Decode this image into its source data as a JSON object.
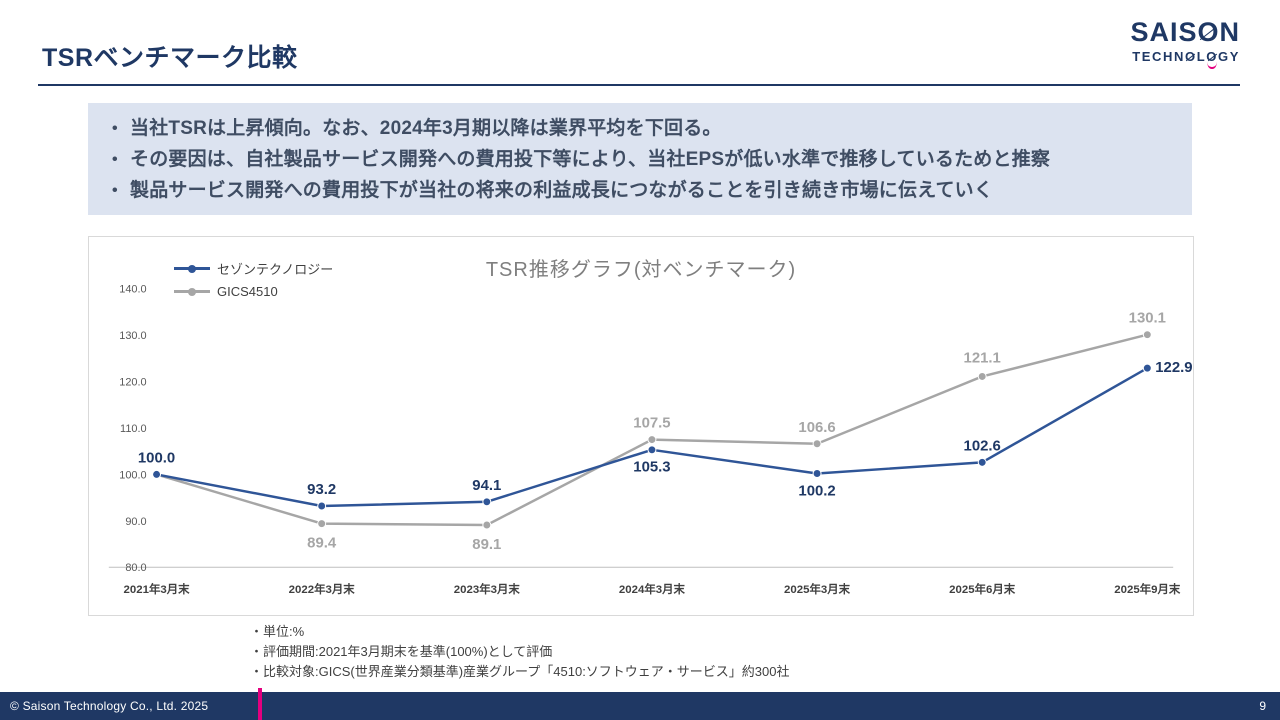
{
  "slide": {
    "title": "TSRベンチマーク比較",
    "page_number": "9",
    "copyright": "© Saison Technology Co., Ltd. 2025"
  },
  "logo": {
    "line1": "SAISON",
    "line2": "TECHNOLOGY",
    "color": "#1F3864",
    "accent_color": "#E4007F"
  },
  "summary": {
    "bullet_char": "•",
    "bullets": [
      "当社TSRは上昇傾向。なお、2024年3月期以降は業界平均を下回る。",
      "その要因は、自社製品サービス開発への費用投下等により、当社EPSが低い水準で推移しているためと推察",
      "製品サービス開発への費用投下が当社の将来の利益成長につながることを引き続き市場に伝えていく"
    ]
  },
  "chart_data": {
    "type": "line",
    "title": "TSR推移グラフ(対ベンチマーク)",
    "categories": [
      "2021年3月末",
      "2022年3月末",
      "2023年3月末",
      "2024年3月末",
      "2025年3月末",
      "2025年6月末",
      "2025年9月末"
    ],
    "series": [
      {
        "name": "セゾンテクノロジー",
        "color": "#2F5597",
        "label_color": "#1F3864",
        "values": [
          100.0,
          93.2,
          94.1,
          105.3,
          100.2,
          102.6,
          122.9
        ]
      },
      {
        "name": "GICS4510",
        "color": "#A6A6A6",
        "label_color": "#A6A6A6",
        "values": [
          100.0,
          89.4,
          89.1,
          107.5,
          106.6,
          121.1,
          130.1
        ]
      }
    ],
    "ylim": [
      80,
      140
    ],
    "ytick_step": 10,
    "grid": false,
    "data_labels": true,
    "legend_position": "top-left"
  },
  "notes": [
    "・単位:%",
    "・評価期間:2021年3月期末を基準(100%)として評価",
    "・比較対象:GICS(世界産業分類基準)産業グループ「4510:ソフトウェア・サービス」約300社"
  ]
}
